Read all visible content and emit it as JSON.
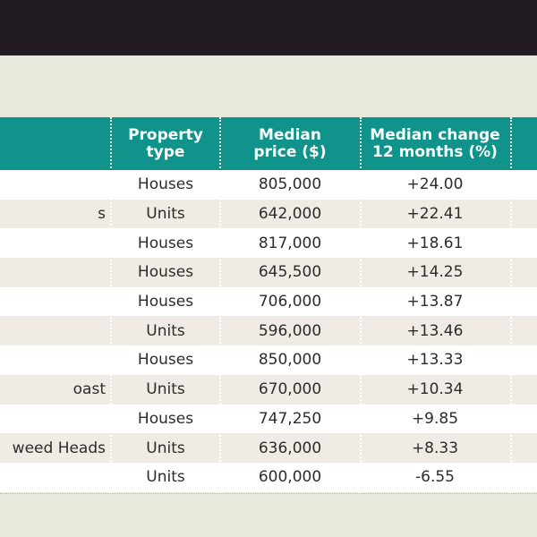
{
  "header": {
    "col_type": "Property\ntype",
    "col_price": "Median\nprice ($)",
    "col_change": "Median change\n12 months (%)"
  },
  "rows": [
    {
      "suburb": "",
      "type": "Houses",
      "price": "805,000",
      "change": "+24.00"
    },
    {
      "suburb": "s",
      "type": "Units",
      "price": "642,000",
      "change": "+22.41"
    },
    {
      "suburb": "",
      "type": "Houses",
      "price": "817,000",
      "change": "+18.61"
    },
    {
      "suburb": "",
      "type": "Houses",
      "price": "645,500",
      "change": "+14.25"
    },
    {
      "suburb": "",
      "type": "Houses",
      "price": "706,000",
      "change": "+13.87"
    },
    {
      "suburb": "",
      "type": "Units",
      "price": "596,000",
      "change": "+13.46"
    },
    {
      "suburb": "",
      "type": "Houses",
      "price": "850,000",
      "change": "+13.33"
    },
    {
      "suburb": "oast",
      "type": "Units",
      "price": "670,000",
      "change": "+10.34"
    },
    {
      "suburb": "",
      "type": "Houses",
      "price": "747,250",
      "change": "+9.85"
    },
    {
      "suburb": "weed Heads",
      "type": "Units",
      "price": "636,000",
      "change": "+8.33"
    },
    {
      "suburb": "",
      "type": "Units",
      "price": "600,000",
      "change": "-6.55"
    }
  ],
  "colors": {
    "header_bg": "#0f938a",
    "top_bar": "#231b24",
    "page_bg": "#e7eadc",
    "row_alt": "#f1ebe5"
  }
}
